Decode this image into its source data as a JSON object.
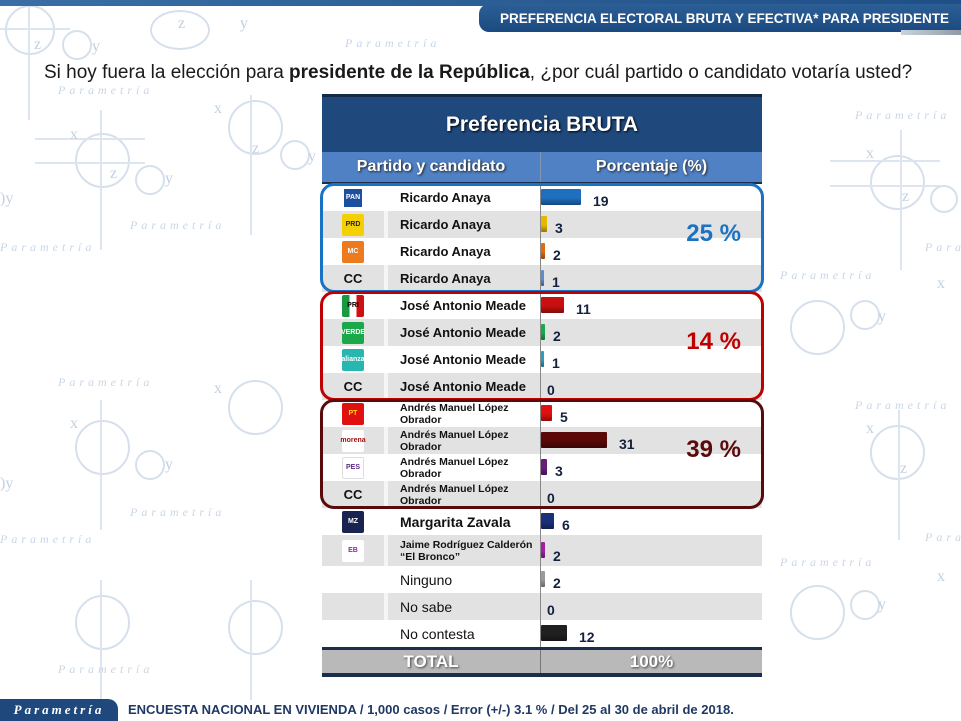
{
  "header": {
    "banner_title": "PREFERENCIA ELECTORAL BRUTA Y EFECTIVA* PARA PRESIDENTE"
  },
  "question": {
    "part1": "Si hoy fuera la elección para ",
    "bold": "presidente de la República",
    "part2": ", ¿por cuál partido o candidato votaría usted?"
  },
  "table": {
    "title": "Preferencia BRUTA",
    "col_party": "Partido y candidato",
    "col_pct": "Porcentaje (%)",
    "total_label": "TOTAL",
    "total_value": "100%"
  },
  "groups": [
    {
      "label": "25 %",
      "color": "#1a72c4"
    },
    {
      "label": "14 %",
      "color": "#c00000"
    },
    {
      "label": "39 %",
      "color": "#5a0a0a"
    }
  ],
  "rows": [
    {
      "logo": "PAN",
      "logo_icon": "pan-logo-icon",
      "name": "Ricardo Anaya",
      "value": "19",
      "color": "#1f6fc0"
    },
    {
      "logo": "PRD",
      "logo_icon": "prd-logo-icon",
      "name": "Ricardo Anaya",
      "value": "3",
      "color": "#e8b800"
    },
    {
      "logo": "MC",
      "logo_icon": "movimiento-ciudadano-logo-icon",
      "name": "Ricardo Anaya",
      "value": "2",
      "color": "#e06c10"
    },
    {
      "logo": "CC",
      "logo_icon": "",
      "name": "Ricardo Anaya",
      "value": "1",
      "color": "#5b8ed0"
    },
    {
      "logo": "PRI",
      "logo_icon": "pri-logo-icon",
      "name": "José Antonio Meade",
      "value": "11",
      "color": "#c81010"
    },
    {
      "logo": "VERDE",
      "logo_icon": "pvem-logo-icon",
      "name": "José Antonio Meade",
      "value": "2",
      "color": "#1aa84a"
    },
    {
      "logo": "alianza",
      "logo_icon": "nueva-alianza-logo-icon",
      "name": "José Antonio Meade",
      "value": "1",
      "color": "#2aa0c0"
    },
    {
      "logo": "CC",
      "logo_icon": "",
      "name": "José Antonio Meade",
      "value": "0",
      "color": "#888888"
    },
    {
      "logo": "PT",
      "logo_icon": "pt-logo-icon",
      "name": "Andrés Manuel López Obrador",
      "value": "5",
      "color": "#e01010"
    },
    {
      "logo": "morena",
      "logo_icon": "morena-logo-icon",
      "name": "Andrés Manuel López Obrador",
      "value": "31",
      "color": "#5a0808"
    },
    {
      "logo": "PES",
      "logo_icon": "encuentro-social-logo-icon",
      "name": "Andrés Manuel López Obrador",
      "value": "3",
      "color": "#6a1a7a"
    },
    {
      "logo": "CC",
      "logo_icon": "",
      "name": "Andrés Manuel López Obrador",
      "value": "0",
      "color": "#888888"
    },
    {
      "logo": "MZ",
      "logo_icon": "margarita-zavala-logo-icon",
      "name": "Margarita Zavala",
      "value": "6",
      "color": "#1a2f7a"
    },
    {
      "logo": "EB",
      "logo_icon": "el-bronco-logo-icon",
      "name": "Jaime Rodríguez Calderón “El Bronco”",
      "value": "2",
      "color": "#a020a0"
    },
    {
      "logo": "",
      "logo_icon": "",
      "name": "Ninguno",
      "value": "2",
      "color": "#9a9a9a"
    },
    {
      "logo": "",
      "logo_icon": "",
      "name": "No sabe",
      "value": "0",
      "color": "#888888"
    },
    {
      "logo": "",
      "logo_icon": "",
      "name": "No contesta",
      "value": "12",
      "color": "#202020"
    }
  ],
  "footer": {
    "brand": "Parametría",
    "text": "ENCUESTA NACIONAL EN VIVIENDA / 1,000 casos / Error (+/-) 3.1 % / Del 25 al 30 de abril de 2018."
  },
  "watermark": {
    "brand": "Parametría"
  },
  "chart_data": {
    "type": "bar",
    "title": "Preferencia BRUTA",
    "xlabel": "Partido y candidato",
    "ylabel": "Porcentaje (%)",
    "orientation": "horizontal",
    "categories": [
      "PAN - Ricardo Anaya",
      "PRD - Ricardo Anaya",
      "MC - Ricardo Anaya",
      "CC - Ricardo Anaya",
      "PRI - José Antonio Meade",
      "PVEM - José Antonio Meade",
      "Nueva Alianza - José Antonio Meade",
      "CC - José Antonio Meade",
      "PT - Andrés Manuel López Obrador",
      "Morena - Andrés Manuel López Obrador",
      "PES - Andrés Manuel López Obrador",
      "CC - Andrés Manuel López Obrador",
      "Margarita Zavala",
      "Jaime Rodríguez Calderón “El Bronco”",
      "Ninguno",
      "No sabe",
      "No contesta"
    ],
    "values": [
      19,
      3,
      2,
      1,
      11,
      2,
      1,
      0,
      5,
      31,
      3,
      0,
      6,
      2,
      2,
      0,
      12
    ],
    "group_totals": [
      {
        "candidate": "Ricardo Anaya",
        "total": 25
      },
      {
        "candidate": "José Antonio Meade",
        "total": 14
      },
      {
        "candidate": "Andrés Manuel López Obrador",
        "total": 39
      }
    ],
    "total": "100%",
    "grid": false,
    "legend": "none"
  }
}
